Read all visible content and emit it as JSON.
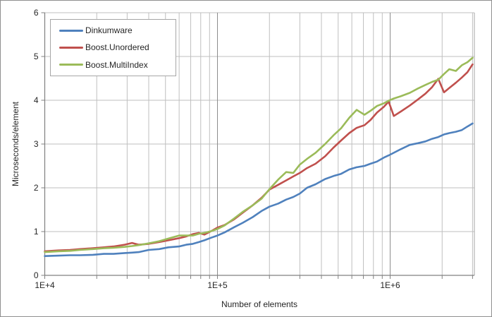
{
  "chart_data": {
    "type": "line",
    "title": "",
    "xlabel": "Number of elements",
    "ylabel": "Microseconds/element",
    "x_scale": "log10",
    "x_range": [
      10000,
      3080000
    ],
    "y_range": [
      0,
      6
    ],
    "grid": true,
    "legend_position": "top-left-inside",
    "y_ticks": [
      0,
      1,
      2,
      3,
      4,
      5,
      6
    ],
    "x_major_ticks": [
      {
        "value": 10000,
        "label": "1E+4"
      },
      {
        "value": 100000,
        "label": "1E+5"
      },
      {
        "value": 1000000,
        "label": "1E+6"
      }
    ],
    "x_minor_ticks": [
      20000,
      30000,
      40000,
      50000,
      60000,
      70000,
      80000,
      90000,
      200000,
      300000,
      400000,
      500000,
      600000,
      700000,
      800000,
      900000,
      2000000,
      3000000
    ],
    "x": [
      10000,
      12000,
      14000,
      16000,
      19000,
      22000,
      25000,
      29000,
      32000,
      35000,
      40000,
      46000,
      52000,
      60000,
      66000,
      72000,
      78000,
      84000,
      92000,
      100000,
      110000,
      125000,
      140000,
      160000,
      180000,
      200000,
      225000,
      250000,
      275000,
      300000,
      330000,
      370000,
      420000,
      470000,
      520000,
      580000,
      640000,
      710000,
      770000,
      840000,
      920000,
      980000,
      1050000,
      1150000,
      1300000,
      1450000,
      1600000,
      1750000,
      1900000,
      2050000,
      2200000,
      2400000,
      2600000,
      2800000,
      3000000
    ],
    "series": [
      {
        "name": "Dinkumware",
        "color": "#4F81BD",
        "values": [
          0.44,
          0.45,
          0.46,
          0.46,
          0.47,
          0.49,
          0.49,
          0.51,
          0.52,
          0.53,
          0.58,
          0.6,
          0.64,
          0.66,
          0.7,
          0.72,
          0.76,
          0.8,
          0.86,
          0.91,
          0.98,
          1.1,
          1.2,
          1.33,
          1.47,
          1.57,
          1.64,
          1.73,
          1.79,
          1.87,
          2.0,
          2.08,
          2.2,
          2.27,
          2.32,
          2.42,
          2.47,
          2.5,
          2.55,
          2.6,
          2.69,
          2.74,
          2.8,
          2.88,
          2.98,
          3.02,
          3.06,
          3.12,
          3.16,
          3.22,
          3.25,
          3.28,
          3.32,
          3.4,
          3.47
        ]
      },
      {
        "name": "Boost.Unordered",
        "color": "#C0504D",
        "values": [
          0.55,
          0.57,
          0.58,
          0.6,
          0.62,
          0.64,
          0.66,
          0.7,
          0.74,
          0.7,
          0.72,
          0.76,
          0.8,
          0.85,
          0.89,
          0.94,
          0.97,
          0.93,
          1.01,
          1.09,
          1.15,
          1.28,
          1.43,
          1.6,
          1.77,
          1.96,
          2.07,
          2.17,
          2.26,
          2.34,
          2.45,
          2.55,
          2.72,
          2.92,
          3.08,
          3.25,
          3.37,
          3.43,
          3.55,
          3.72,
          3.85,
          3.97,
          3.64,
          3.74,
          3.88,
          4.02,
          4.15,
          4.3,
          4.49,
          4.18,
          4.28,
          4.4,
          4.52,
          4.64,
          4.82
        ]
      },
      {
        "name": "Boost.MultiIndex",
        "color": "#9BBB59",
        "values": [
          0.53,
          0.55,
          0.56,
          0.58,
          0.6,
          0.62,
          0.63,
          0.65,
          0.67,
          0.69,
          0.73,
          0.78,
          0.84,
          0.91,
          0.91,
          0.91,
          0.95,
          0.97,
          1.01,
          1.06,
          1.14,
          1.3,
          1.45,
          1.6,
          1.75,
          1.97,
          2.19,
          2.36,
          2.34,
          2.53,
          2.66,
          2.8,
          3.0,
          3.2,
          3.36,
          3.6,
          3.78,
          3.67,
          3.76,
          3.87,
          3.93,
          3.99,
          4.04,
          4.09,
          4.17,
          4.27,
          4.35,
          4.42,
          4.47,
          4.6,
          4.71,
          4.67,
          4.8,
          4.87,
          4.97
        ]
      }
    ],
    "colors": {
      "grid_minor": "#BFBFBF",
      "grid_major": "#8C8C8C",
      "axis": "#808080",
      "text": "#262626",
      "plot_border": "#A6A6A6"
    }
  }
}
